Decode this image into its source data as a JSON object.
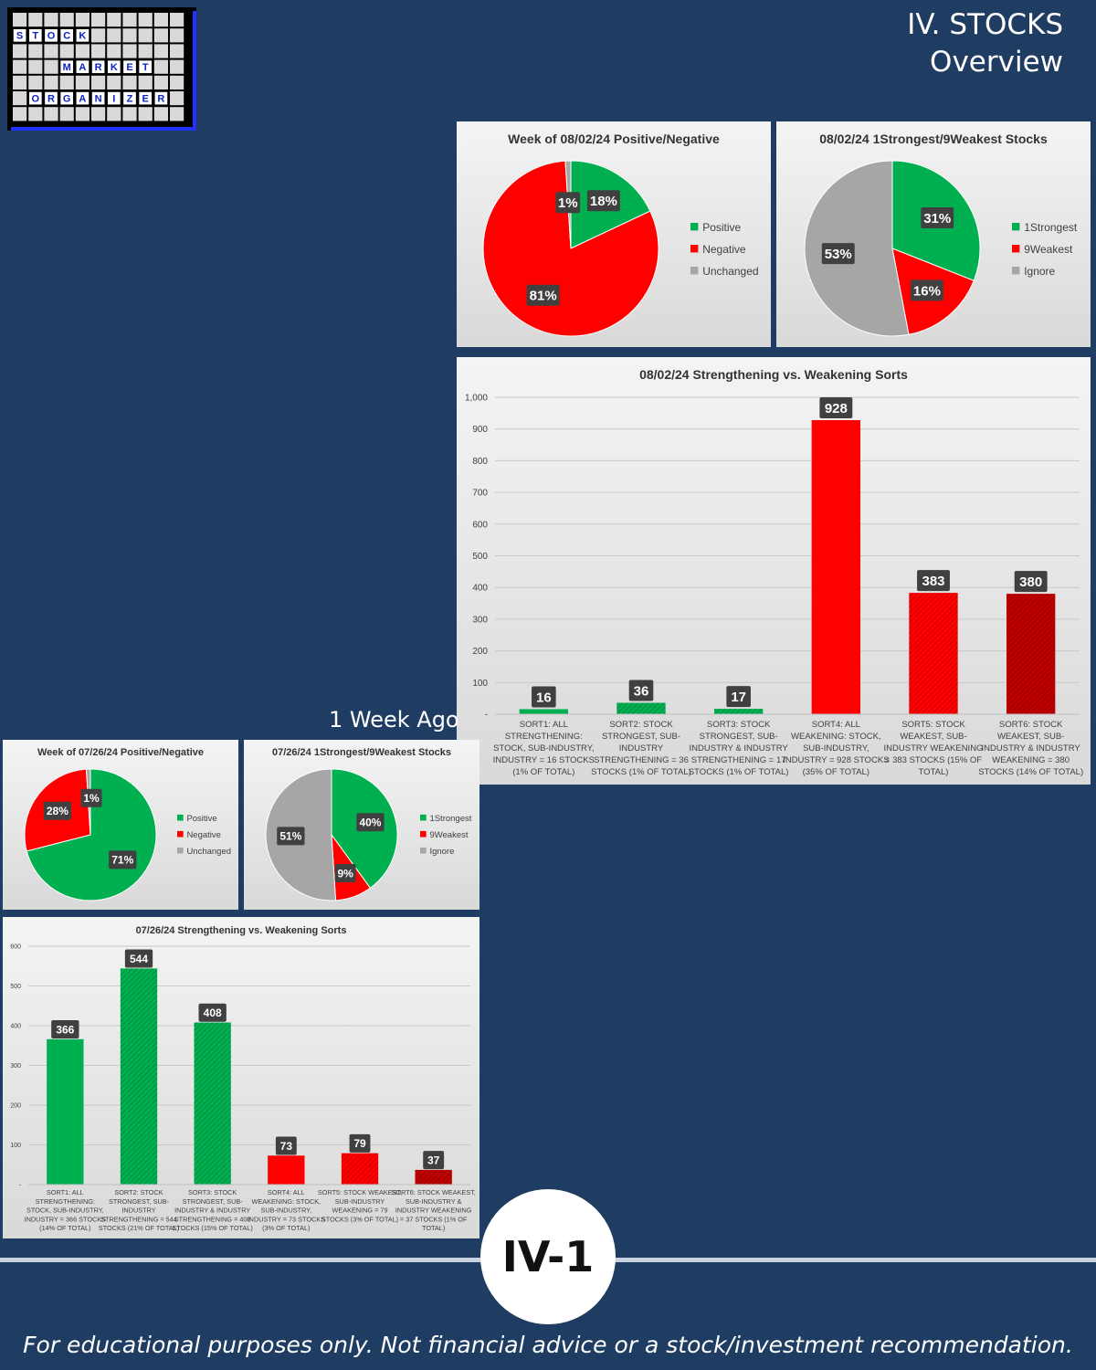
{
  "header": {
    "section": "IV. STOCKS",
    "subtitle": "Overview"
  },
  "logo": {
    "rows": [
      [
        "S",
        "T",
        "O",
        "C",
        "K"
      ],
      [
        "M",
        "A",
        "R",
        "K",
        "E",
        "T"
      ],
      [
        "O",
        "R",
        "G",
        "A",
        "N",
        "I",
        "Z",
        "E",
        "R"
      ]
    ]
  },
  "week_ago_label": "1 Week Ago",
  "page_badge": "IV-1",
  "disclaimer": "For educational purposes only. Not financial advice or a stock/investment recommendation.",
  "colors": {
    "green": "#00b050",
    "red": "#ff0000",
    "darkred": "#c00000",
    "gray": "#a6a6a6",
    "background": "#1f3d63"
  },
  "chart_data": [
    {
      "id": "cur-posneg",
      "type": "pie",
      "title": "Week of 08/02/24 Positive/Negative",
      "categories": [
        "Positive",
        "Negative",
        "Unchanged"
      ],
      "values": [
        18,
        81,
        1
      ],
      "labels": [
        "18%",
        "81%",
        "1%"
      ],
      "colors": [
        "#00b050",
        "#ff0000",
        "#a6a6a6"
      ],
      "legend": "right"
    },
    {
      "id": "cur-strongweak",
      "type": "pie",
      "title": "08/02/24 1Strongest/9Weakest Stocks",
      "categories": [
        "1Strongest",
        "9Weakest",
        "Ignore"
      ],
      "values": [
        31,
        16,
        53
      ],
      "labels": [
        "31%",
        "16%",
        "53%"
      ],
      "colors": [
        "#00b050",
        "#ff0000",
        "#a6a6a6"
      ],
      "legend": "right"
    },
    {
      "id": "cur-sorts",
      "type": "bar",
      "title": "08/02/24 Strengthening vs. Weakening Sorts",
      "categories": [
        [
          "SORT1: ALL",
          "STRENGTHENING:",
          "STOCK, SUB-INDUSTRY,",
          "INDUSTRY = 16 STOCKS",
          "(1% OF TOTAL)"
        ],
        [
          "SORT2: STOCK",
          "STRONGEST, SUB-",
          "INDUSTRY",
          "STRENGTHENING = 36",
          "STOCKS (1% OF TOTAL)"
        ],
        [
          "SORT3: STOCK",
          "STRONGEST, SUB-",
          "INDUSTRY & INDUSTRY",
          "STRENGTHENING = 17",
          "STOCKS (1% OF TOTAL)"
        ],
        [
          "SORT4: ALL",
          "WEAKENING: STOCK,",
          "SUB-INDUSTRY,",
          "INDUSTRY = 928 STOCKS",
          "(35% OF TOTAL)"
        ],
        [
          "SORT5: STOCK",
          "WEAKEST, SUB-",
          "INDUSTRY WEAKENING",
          "= 383 STOCKS (15% OF",
          "TOTAL)"
        ],
        [
          "SORT6: STOCK",
          "WEAKEST, SUB-",
          "INDUSTRY & INDUSTRY",
          "WEAKENING = 380",
          "STOCKS (14% OF TOTAL)"
        ]
      ],
      "values": [
        16,
        36,
        17,
        928,
        383,
        380
      ],
      "bar_colors": [
        "#00b050",
        "#00b050",
        "#00b050",
        "#ff0000",
        "#ff0000",
        "#c00000"
      ],
      "hatched": [
        false,
        true,
        true,
        false,
        true,
        true
      ],
      "ylim": [
        0,
        1000
      ],
      "yticks": [
        "-",
        "100",
        "200",
        "300",
        "400",
        "500",
        "600",
        "700",
        "800",
        "900",
        "1,000"
      ]
    },
    {
      "id": "prev-posneg",
      "type": "pie",
      "title": "Week of 07/26/24 Positive/Negative",
      "categories": [
        "Positive",
        "Negative",
        "Unchanged"
      ],
      "values": [
        71,
        28,
        1
      ],
      "labels": [
        "71%",
        "28%",
        "1%"
      ],
      "colors": [
        "#00b050",
        "#ff0000",
        "#a6a6a6"
      ],
      "legend": "right"
    },
    {
      "id": "prev-strongweak",
      "type": "pie",
      "title": "07/26/24 1Strongest/9Weakest Stocks",
      "categories": [
        "1Strongest",
        "9Weakest",
        "Ignore"
      ],
      "values": [
        40,
        9,
        51
      ],
      "labels": [
        "40%",
        "9%",
        "51%"
      ],
      "colors": [
        "#00b050",
        "#ff0000",
        "#a6a6a6"
      ],
      "legend": "right"
    },
    {
      "id": "prev-sorts",
      "type": "bar",
      "title": "07/26/24 Strengthening vs. Weakening Sorts",
      "categories": [
        [
          "SORT1: ALL",
          "STRENGTHENING:",
          "STOCK, SUB-INDUSTRY,",
          "INDUSTRY = 366 STOCKS",
          "(14% OF TOTAL)"
        ],
        [
          "SORT2: STOCK",
          "STRONGEST, SUB-",
          "INDUSTRY",
          "STRENGTHENING = 544",
          "STOCKS (21% OF TOTAL)"
        ],
        [
          "SORT3: STOCK",
          "STRONGEST, SUB-",
          "INDUSTRY & INDUSTRY",
          "STRENGTHENING = 408",
          "STOCKS (15% OF TOTAL)"
        ],
        [
          "SORT4: ALL",
          "WEAKENING: STOCK,",
          "SUB-INDUSTRY,",
          "INDUSTRY = 73 STOCKS",
          "(3% OF TOTAL)"
        ],
        [
          "SORT5: STOCK WEAKEST,",
          "SUB-INDUSTRY",
          "WEAKENING = 79",
          "STOCKS (3% OF TOTAL)"
        ],
        [
          "SORT6: STOCK WEAKEST,",
          "SUB-INDUSTRY &",
          "INDUSTRY WEAKENING",
          "= 37 STOCKS (1% OF",
          "TOTAL)"
        ]
      ],
      "values": [
        366,
        544,
        408,
        73,
        79,
        37
      ],
      "bar_colors": [
        "#00b050",
        "#00b050",
        "#00b050",
        "#ff0000",
        "#ff0000",
        "#c00000"
      ],
      "hatched": [
        false,
        true,
        true,
        false,
        true,
        true
      ],
      "ylim": [
        0,
        600
      ],
      "yticks": [
        "-",
        "100",
        "200",
        "300",
        "400",
        "500",
        "600"
      ]
    }
  ]
}
